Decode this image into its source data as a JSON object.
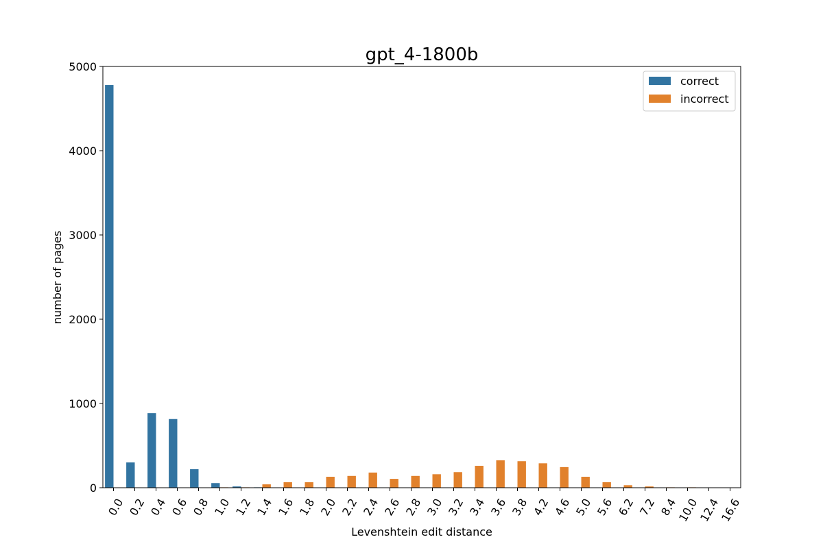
{
  "chart_data": {
    "type": "bar",
    "title": "gpt_4-1800b",
    "xlabel": "Levenshtein edit distance",
    "ylabel": "number of pages",
    "ylim": [
      0,
      5000
    ],
    "yticks": [
      0,
      1000,
      2000,
      3000,
      4000,
      5000
    ],
    "grid": false,
    "legend_position": "top-right",
    "categories": [
      "0.0",
      "0.2",
      "0.4",
      "0.6",
      "0.8",
      "1.0",
      "1.2",
      "1.4",
      "1.6",
      "1.8",
      "2.0",
      "2.2",
      "2.4",
      "2.6",
      "2.8",
      "3.0",
      "3.2",
      "3.4",
      "3.6",
      "3.8",
      "4.2",
      "4.6",
      "5.0",
      "5.6",
      "6.2",
      "7.2",
      "8.4",
      "10.0",
      "12.4",
      "16.6"
    ],
    "series": [
      {
        "name": "correct",
        "color": "#3274a1",
        "values": [
          4780,
          300,
          885,
          815,
          220,
          55,
          15,
          5,
          0,
          0,
          0,
          0,
          0,
          0,
          0,
          0,
          0,
          0,
          0,
          0,
          0,
          0,
          0,
          0,
          0,
          0,
          0,
          0,
          0,
          0
        ]
      },
      {
        "name": "incorrect",
        "color": "#e1812c",
        "values": [
          0,
          0,
          0,
          0,
          0,
          5,
          5,
          40,
          65,
          65,
          130,
          140,
          180,
          105,
          140,
          160,
          185,
          260,
          325,
          315,
          290,
          245,
          130,
          65,
          30,
          15,
          5,
          5,
          0,
          0
        ]
      }
    ]
  }
}
